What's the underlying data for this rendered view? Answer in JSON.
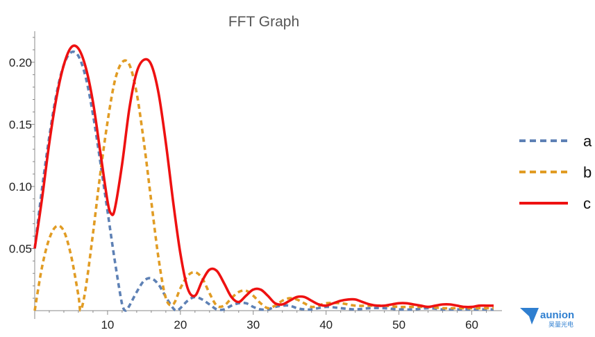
{
  "chart_data": {
    "type": "line",
    "title": "FFT Graph",
    "xlabel": "",
    "ylabel": "",
    "xlim": [
      0,
      63
    ],
    "ylim": [
      0,
      0.225
    ],
    "x_ticks": [
      10,
      20,
      30,
      40,
      50,
      60
    ],
    "x_tick_labels": [
      "10",
      "20",
      "30",
      "40",
      "50",
      "60"
    ],
    "y_ticks": [
      0.05,
      0.1,
      0.15,
      0.2
    ],
    "y_tick_labels": [
      "0.05",
      "0.10",
      "0.15",
      "0.20"
    ],
    "grid": false,
    "legend_position": "right",
    "series": [
      {
        "name": "a",
        "color": "#5e81b5",
        "dash": "dashed",
        "points": [
          [
            0,
            0.05
          ],
          [
            1,
            0.098
          ],
          [
            2,
            0.14
          ],
          [
            3,
            0.175
          ],
          [
            4,
            0.198
          ],
          [
            5,
            0.208
          ],
          [
            6,
            0.205
          ],
          [
            7,
            0.188
          ],
          [
            8,
            0.158
          ],
          [
            9,
            0.12
          ],
          [
            10,
            0.08
          ],
          [
            11,
            0.04
          ],
          [
            12,
            0.005
          ],
          [
            12.5,
            0
          ],
          [
            13,
            0.004
          ],
          [
            14,
            0.015
          ],
          [
            15,
            0.024
          ],
          [
            16,
            0.026
          ],
          [
            17,
            0.021
          ],
          [
            18,
            0.011
          ],
          [
            19,
            0.002
          ],
          [
            19.5,
            0
          ],
          [
            20,
            0.002
          ],
          [
            21,
            0.008
          ],
          [
            22,
            0.011
          ],
          [
            23,
            0.009
          ],
          [
            24,
            0.005
          ],
          [
            25,
            0.001
          ],
          [
            26,
            0.001
          ],
          [
            27,
            0.004
          ],
          [
            28,
            0.006
          ],
          [
            29,
            0.006
          ],
          [
            30,
            0.003
          ],
          [
            31,
            0.001
          ],
          [
            32,
            0.001
          ],
          [
            33,
            0.003
          ],
          [
            34,
            0.004
          ],
          [
            35,
            0.004
          ],
          [
            36,
            0.002
          ],
          [
            37,
            0.001
          ],
          [
            38,
            0.001
          ],
          [
            40,
            0.003
          ],
          [
            42,
            0.002
          ],
          [
            44,
            0.001
          ],
          [
            46,
            0.002
          ],
          [
            48,
            0.002
          ],
          [
            50,
            0.001
          ],
          [
            52,
            0.001
          ],
          [
            54,
            0.002
          ],
          [
            56,
            0.001
          ],
          [
            58,
            0.001
          ],
          [
            60,
            0.001
          ],
          [
            63,
            0.001
          ]
        ]
      },
      {
        "name": "b",
        "color": "#e19c24",
        "dash": "dashed",
        "points": [
          [
            0,
            0
          ],
          [
            1,
            0.035
          ],
          [
            2,
            0.058
          ],
          [
            3,
            0.068
          ],
          [
            4,
            0.064
          ],
          [
            5,
            0.044
          ],
          [
            6,
            0.012
          ],
          [
            6.3,
            0
          ],
          [
            7,
            0.018
          ],
          [
            8,
            0.062
          ],
          [
            9,
            0.11
          ],
          [
            10,
            0.152
          ],
          [
            11,
            0.185
          ],
          [
            12,
            0.2
          ],
          [
            13,
            0.198
          ],
          [
            14,
            0.175
          ],
          [
            15,
            0.135
          ],
          [
            16,
            0.088
          ],
          [
            17,
            0.042
          ],
          [
            18,
            0.01
          ],
          [
            19,
            0.005
          ],
          [
            20,
            0.018
          ],
          [
            21,
            0.028
          ],
          [
            22,
            0.031
          ],
          [
            23,
            0.026
          ],
          [
            24,
            0.014
          ],
          [
            25,
            0.004
          ],
          [
            26,
            0.004
          ],
          [
            27,
            0.01
          ],
          [
            28,
            0.015
          ],
          [
            29,
            0.016
          ],
          [
            30,
            0.012
          ],
          [
            31,
            0.006
          ],
          [
            32,
            0.002
          ],
          [
            33,
            0.004
          ],
          [
            34,
            0.008
          ],
          [
            35,
            0.01
          ],
          [
            36,
            0.009
          ],
          [
            37,
            0.006
          ],
          [
            38,
            0.003
          ],
          [
            39,
            0.004
          ],
          [
            40,
            0.006
          ],
          [
            42,
            0.006
          ],
          [
            44,
            0.004
          ],
          [
            46,
            0.004
          ],
          [
            48,
            0.004
          ],
          [
            50,
            0.003
          ],
          [
            52,
            0.003
          ],
          [
            54,
            0.003
          ],
          [
            56,
            0.002
          ],
          [
            58,
            0.002
          ],
          [
            60,
            0.002
          ],
          [
            63,
            0.002
          ]
        ]
      },
      {
        "name": "c",
        "color": "#ee1111",
        "dash": "solid",
        "points": [
          [
            0,
            0.05
          ],
          [
            1,
            0.09
          ],
          [
            2,
            0.135
          ],
          [
            3,
            0.172
          ],
          [
            4,
            0.198
          ],
          [
            5,
            0.212
          ],
          [
            6,
            0.211
          ],
          [
            7,
            0.196
          ],
          [
            8,
            0.168
          ],
          [
            9,
            0.128
          ],
          [
            10,
            0.088
          ],
          [
            10.5,
            0.078
          ],
          [
            11,
            0.082
          ],
          [
            12,
            0.118
          ],
          [
            13,
            0.163
          ],
          [
            14,
            0.192
          ],
          [
            15,
            0.202
          ],
          [
            16,
            0.198
          ],
          [
            17,
            0.175
          ],
          [
            18,
            0.135
          ],
          [
            19,
            0.088
          ],
          [
            20,
            0.046
          ],
          [
            21,
            0.018
          ],
          [
            22,
            0.012
          ],
          [
            23,
            0.024
          ],
          [
            24,
            0.033
          ],
          [
            25,
            0.032
          ],
          [
            26,
            0.022
          ],
          [
            27,
            0.011
          ],
          [
            28,
            0.007
          ],
          [
            29,
            0.012
          ],
          [
            30,
            0.017
          ],
          [
            31,
            0.017
          ],
          [
            32,
            0.012
          ],
          [
            33,
            0.006
          ],
          [
            34,
            0.005
          ],
          [
            35,
            0.008
          ],
          [
            36,
            0.011
          ],
          [
            37,
            0.011
          ],
          [
            38,
            0.008
          ],
          [
            39,
            0.005
          ],
          [
            40,
            0.004
          ],
          [
            41,
            0.006
          ],
          [
            42,
            0.008
          ],
          [
            43,
            0.009
          ],
          [
            44,
            0.009
          ],
          [
            45,
            0.007
          ],
          [
            46,
            0.005
          ],
          [
            47,
            0.004
          ],
          [
            48,
            0.004
          ],
          [
            49,
            0.005
          ],
          [
            50,
            0.006
          ],
          [
            51,
            0.006
          ],
          [
            52,
            0.005
          ],
          [
            53,
            0.004
          ],
          [
            54,
            0.003
          ],
          [
            55,
            0.004
          ],
          [
            56,
            0.005
          ],
          [
            57,
            0.005
          ],
          [
            58,
            0.004
          ],
          [
            59,
            0.003
          ],
          [
            60,
            0.003
          ],
          [
            61,
            0.004
          ],
          [
            62,
            0.004
          ],
          [
            63,
            0.004
          ]
        ]
      }
    ]
  },
  "logo": {
    "name": "aunion",
    "subtitle": "昊量光电",
    "color": "#2f7fd0"
  }
}
